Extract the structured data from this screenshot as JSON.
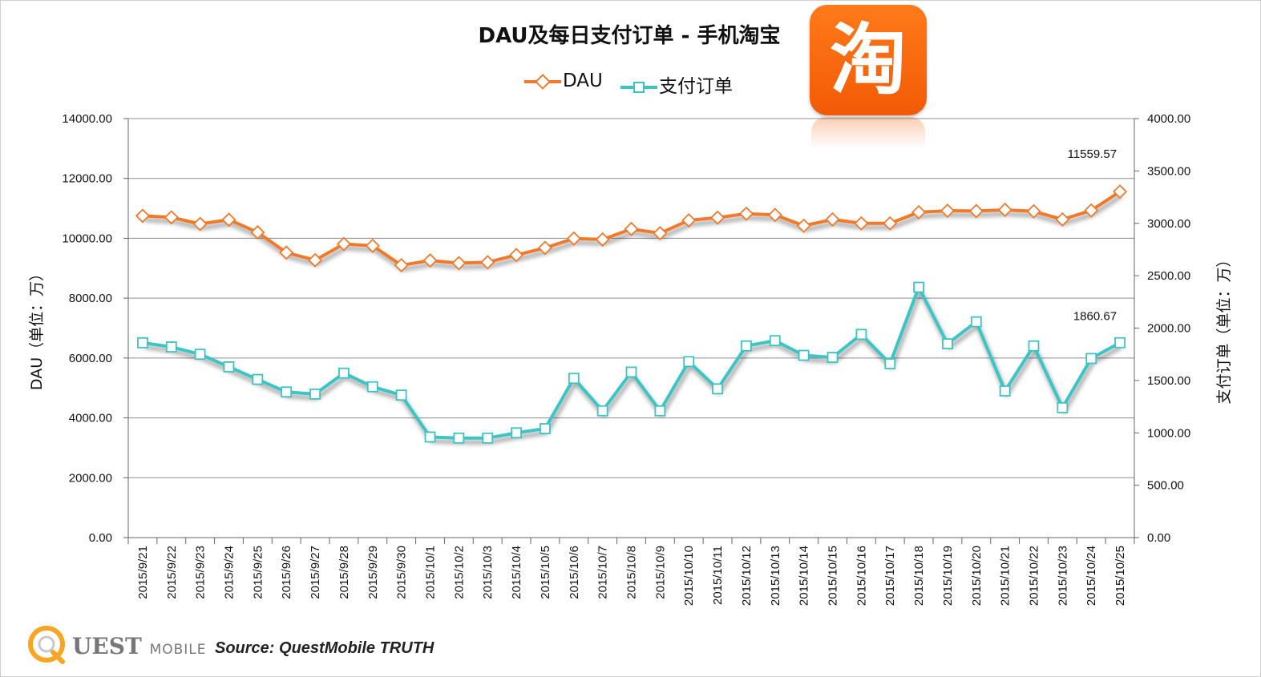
{
  "chart_data": {
    "type": "line",
    "title": "DAU及每日支付订单 - 手机淘宝",
    "y_left": {
      "label": "DAU（单位：万）",
      "range": [
        0,
        14000
      ],
      "ticks": [
        0,
        2000,
        4000,
        6000,
        8000,
        10000,
        12000,
        14000
      ],
      "tick_labels": [
        "0.00",
        "2000.00",
        "4000.00",
        "6000.00",
        "8000.00",
        "10000.00",
        "12000.00",
        "14000.00"
      ]
    },
    "y_right": {
      "label": "支付订单（单位：万）",
      "range": [
        0,
        4000
      ],
      "ticks": [
        0,
        500,
        1000,
        1500,
        2000,
        2500,
        3000,
        3500,
        4000
      ],
      "tick_labels": [
        "0.00",
        "500.00",
        "1000.00",
        "1500.00",
        "2000.00",
        "2500.00",
        "3000.00",
        "3500.00",
        "4000.00"
      ]
    },
    "categories": [
      "2015/9/21",
      "2015/9/22",
      "2015/9/23",
      "2015/9/24",
      "2015/9/25",
      "2015/9/26",
      "2015/9/27",
      "2015/9/28",
      "2015/9/29",
      "2015/9/30",
      "2015/10/1",
      "2015/10/2",
      "2015/10/3",
      "2015/10/4",
      "2015/10/5",
      "2015/10/6",
      "2015/10/7",
      "2015/10/8",
      "2015/10/9",
      "2015/10/10",
      "2015/10/11",
      "2015/10/12",
      "2015/10/13",
      "2015/10/14",
      "2015/10/15",
      "2015/10/16",
      "2015/10/17",
      "2015/10/18",
      "2015/10/19",
      "2015/10/20",
      "2015/10/21",
      "2015/10/22",
      "2015/10/23",
      "2015/10/24",
      "2015/10/25"
    ],
    "series": [
      {
        "name": "DAU",
        "axis": "left",
        "color": "#f07a2c",
        "marker": "diamond",
        "values": [
          10750,
          10700,
          10480,
          10620,
          10200,
          9520,
          9270,
          9810,
          9750,
          9100,
          9260,
          9170,
          9200,
          9440,
          9680,
          9990,
          9960,
          10310,
          10170,
          10600,
          10690,
          10820,
          10780,
          10420,
          10630,
          10500,
          10500,
          10870,
          10920,
          10910,
          10950,
          10900,
          10630,
          10930,
          11559.57
        ]
      },
      {
        "name": "支付订单",
        "axis": "right",
        "color": "#3cc4c4",
        "marker": "square",
        "values": [
          1860,
          1820,
          1750,
          1630,
          1510,
          1390,
          1370,
          1570,
          1440,
          1360,
          960,
          950,
          950,
          1000,
          1040,
          1520,
          1210,
          1580,
          1210,
          1680,
          1420,
          1830,
          1880,
          1740,
          1720,
          1940,
          1660,
          2390,
          1850,
          2060,
          1400,
          1830,
          1240,
          1710,
          1860.67
        ]
      }
    ],
    "annotations": [
      {
        "text": "11559.57",
        "series": "DAU",
        "category": "2015/10/25"
      },
      {
        "text": "1860.67",
        "series": "支付订单",
        "category": "2015/10/25"
      }
    ],
    "grid": true,
    "legend_position": "top-center"
  },
  "app_icon": {
    "glyph": "淘",
    "color": "#f25a05",
    "name": "taobao-app-icon"
  },
  "footer": {
    "logo_letter": "Q",
    "logo_text": "UEST",
    "logo_sub": "MOBILE",
    "source": "Source: QuestMobile TRUTH"
  }
}
